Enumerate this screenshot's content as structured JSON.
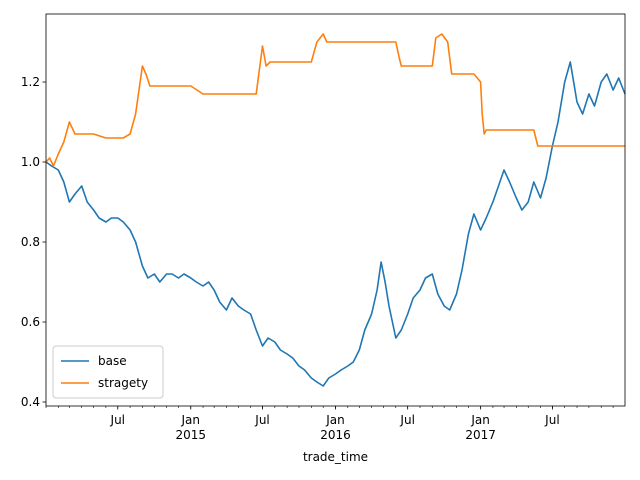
{
  "chart_data": {
    "type": "line",
    "title": "",
    "xlabel": "trade_time",
    "ylabel": "",
    "grid": false,
    "legend_placement": "lower-left",
    "x_range": [
      "2014-01-01",
      "2017-12-31"
    ],
    "ylim": [
      0.39,
      1.37
    ],
    "y_ticks": [
      0.4,
      0.6,
      0.8,
      1.0,
      1.2
    ],
    "y_tick_labels": [
      "0.4",
      "0.6",
      "0.8",
      "1.0",
      "1.2"
    ],
    "x_major_ticks": [
      {
        "date": "2014-07-01",
        "label": "Jul"
      },
      {
        "date": "2015-01-01",
        "label": "Jan\n2015"
      },
      {
        "date": "2015-07-01",
        "label": "Jul"
      },
      {
        "date": "2016-01-01",
        "label": "Jan\n2016"
      },
      {
        "date": "2016-07-01",
        "label": "Jul"
      },
      {
        "date": "2017-01-01",
        "label": "Jan\n2017"
      },
      {
        "date": "2017-07-01",
        "label": "Jul"
      }
    ],
    "series": [
      {
        "name": "base",
        "color": "#1f77b4",
        "points": [
          [
            "2014-01-01",
            1.0
          ],
          [
            "2014-01-15",
            0.99
          ],
          [
            "2014-02-01",
            0.98
          ],
          [
            "2014-02-15",
            0.95
          ],
          [
            "2014-03-01",
            0.9
          ],
          [
            "2014-03-15",
            0.92
          ],
          [
            "2014-04-01",
            0.94
          ],
          [
            "2014-04-15",
            0.9
          ],
          [
            "2014-05-01",
            0.88
          ],
          [
            "2014-05-15",
            0.86
          ],
          [
            "2014-06-01",
            0.85
          ],
          [
            "2014-06-15",
            0.86
          ],
          [
            "2014-07-01",
            0.86
          ],
          [
            "2014-07-15",
            0.85
          ],
          [
            "2014-08-01",
            0.83
          ],
          [
            "2014-08-15",
            0.8
          ],
          [
            "2014-09-01",
            0.74
          ],
          [
            "2014-09-15",
            0.71
          ],
          [
            "2014-10-01",
            0.72
          ],
          [
            "2014-10-15",
            0.7
          ],
          [
            "2014-11-01",
            0.72
          ],
          [
            "2014-11-15",
            0.72
          ],
          [
            "2014-12-01",
            0.71
          ],
          [
            "2014-12-15",
            0.72
          ],
          [
            "2015-01-01",
            0.71
          ],
          [
            "2015-01-15",
            0.7
          ],
          [
            "2015-02-01",
            0.69
          ],
          [
            "2015-02-15",
            0.7
          ],
          [
            "2015-03-01",
            0.68
          ],
          [
            "2015-03-15",
            0.65
          ],
          [
            "2015-04-01",
            0.63
          ],
          [
            "2015-04-15",
            0.66
          ],
          [
            "2015-05-01",
            0.64
          ],
          [
            "2015-05-15",
            0.63
          ],
          [
            "2015-06-01",
            0.62
          ],
          [
            "2015-06-15",
            0.58
          ],
          [
            "2015-07-01",
            0.54
          ],
          [
            "2015-07-15",
            0.56
          ],
          [
            "2015-08-01",
            0.55
          ],
          [
            "2015-08-15",
            0.53
          ],
          [
            "2015-09-01",
            0.52
          ],
          [
            "2015-09-15",
            0.51
          ],
          [
            "2015-10-01",
            0.49
          ],
          [
            "2015-10-15",
            0.48
          ],
          [
            "2015-11-01",
            0.46
          ],
          [
            "2015-11-15",
            0.45
          ],
          [
            "2015-12-01",
            0.44
          ],
          [
            "2015-12-15",
            0.46
          ],
          [
            "2016-01-01",
            0.47
          ],
          [
            "2016-01-15",
            0.48
          ],
          [
            "2016-02-01",
            0.49
          ],
          [
            "2016-02-15",
            0.5
          ],
          [
            "2016-03-01",
            0.53
          ],
          [
            "2016-03-15",
            0.58
          ],
          [
            "2016-04-01",
            0.62
          ],
          [
            "2016-04-15",
            0.68
          ],
          [
            "2016-04-25",
            0.75
          ],
          [
            "2016-05-05",
            0.7
          ],
          [
            "2016-05-15",
            0.64
          ],
          [
            "2016-06-01",
            0.56
          ],
          [
            "2016-06-15",
            0.58
          ],
          [
            "2016-07-01",
            0.62
          ],
          [
            "2016-07-15",
            0.66
          ],
          [
            "2016-08-01",
            0.68
          ],
          [
            "2016-08-15",
            0.71
          ],
          [
            "2016-09-01",
            0.72
          ],
          [
            "2016-09-15",
            0.67
          ],
          [
            "2016-10-01",
            0.64
          ],
          [
            "2016-10-15",
            0.63
          ],
          [
            "2016-11-01",
            0.67
          ],
          [
            "2016-11-15",
            0.73
          ],
          [
            "2016-12-01",
            0.82
          ],
          [
            "2016-12-15",
            0.87
          ],
          [
            "2017-01-01",
            0.83
          ],
          [
            "2017-01-15",
            0.86
          ],
          [
            "2017-02-01",
            0.9
          ],
          [
            "2017-02-15",
            0.94
          ],
          [
            "2017-03-01",
            0.98
          ],
          [
            "2017-03-15",
            0.95
          ],
          [
            "2017-04-01",
            0.91
          ],
          [
            "2017-04-15",
            0.88
          ],
          [
            "2017-05-01",
            0.9
          ],
          [
            "2017-05-15",
            0.95
          ],
          [
            "2017-06-01",
            0.91
          ],
          [
            "2017-06-15",
            0.96
          ],
          [
            "2017-07-01",
            1.04
          ],
          [
            "2017-07-15",
            1.1
          ],
          [
            "2017-08-01",
            1.2
          ],
          [
            "2017-08-15",
            1.25
          ],
          [
            "2017-09-01",
            1.15
          ],
          [
            "2017-09-15",
            1.12
          ],
          [
            "2017-10-01",
            1.17
          ],
          [
            "2017-10-15",
            1.14
          ],
          [
            "2017-11-01",
            1.2
          ],
          [
            "2017-11-15",
            1.22
          ],
          [
            "2017-12-01",
            1.18
          ],
          [
            "2017-12-15",
            1.21
          ],
          [
            "2017-12-31",
            1.17
          ]
        ]
      },
      {
        "name": "stragety",
        "color": "#ff7f0e",
        "points": [
          [
            "2014-01-01",
            1.0
          ],
          [
            "2014-01-10",
            1.01
          ],
          [
            "2014-01-20",
            0.99
          ],
          [
            "2014-02-01",
            1.02
          ],
          [
            "2014-02-15",
            1.05
          ],
          [
            "2014-03-01",
            1.1
          ],
          [
            "2014-03-15",
            1.07
          ],
          [
            "2014-04-01",
            1.07
          ],
          [
            "2014-05-01",
            1.07
          ],
          [
            "2014-06-01",
            1.06
          ],
          [
            "2014-07-01",
            1.06
          ],
          [
            "2014-07-15",
            1.06
          ],
          [
            "2014-08-01",
            1.07
          ],
          [
            "2014-08-15",
            1.12
          ],
          [
            "2014-09-01",
            1.24
          ],
          [
            "2014-09-10",
            1.22
          ],
          [
            "2014-09-20",
            1.19
          ],
          [
            "2014-10-15",
            1.19
          ],
          [
            "2014-12-01",
            1.19
          ],
          [
            "2015-01-01",
            1.19
          ],
          [
            "2015-02-01",
            1.17
          ],
          [
            "2015-04-01",
            1.17
          ],
          [
            "2015-05-01",
            1.17
          ],
          [
            "2015-06-15",
            1.17
          ],
          [
            "2015-07-01",
            1.29
          ],
          [
            "2015-07-10",
            1.24
          ],
          [
            "2015-07-20",
            1.25
          ],
          [
            "2015-08-15",
            1.25
          ],
          [
            "2015-09-01",
            1.25
          ],
          [
            "2015-10-01",
            1.25
          ],
          [
            "2015-11-01",
            1.25
          ],
          [
            "2015-11-15",
            1.3
          ],
          [
            "2015-12-01",
            1.32
          ],
          [
            "2015-12-10",
            1.3
          ],
          [
            "2016-01-01",
            1.3
          ],
          [
            "2016-03-01",
            1.3
          ],
          [
            "2016-05-01",
            1.3
          ],
          [
            "2016-06-01",
            1.3
          ],
          [
            "2016-06-10",
            1.26
          ],
          [
            "2016-06-15",
            1.24
          ],
          [
            "2016-08-01",
            1.24
          ],
          [
            "2016-09-01",
            1.24
          ],
          [
            "2016-09-10",
            1.31
          ],
          [
            "2016-09-25",
            1.32
          ],
          [
            "2016-10-10",
            1.3
          ],
          [
            "2016-10-20",
            1.22
          ],
          [
            "2016-11-15",
            1.22
          ],
          [
            "2016-12-15",
            1.22
          ],
          [
            "2017-01-01",
            1.2
          ],
          [
            "2017-01-05",
            1.12
          ],
          [
            "2017-01-10",
            1.07
          ],
          [
            "2017-01-15",
            1.08
          ],
          [
            "2017-03-01",
            1.08
          ],
          [
            "2017-05-01",
            1.08
          ],
          [
            "2017-05-15",
            1.08
          ],
          [
            "2017-05-25",
            1.04
          ],
          [
            "2017-07-01",
            1.04
          ],
          [
            "2017-10-01",
            1.04
          ],
          [
            "2017-12-31",
            1.04
          ]
        ]
      }
    ]
  }
}
